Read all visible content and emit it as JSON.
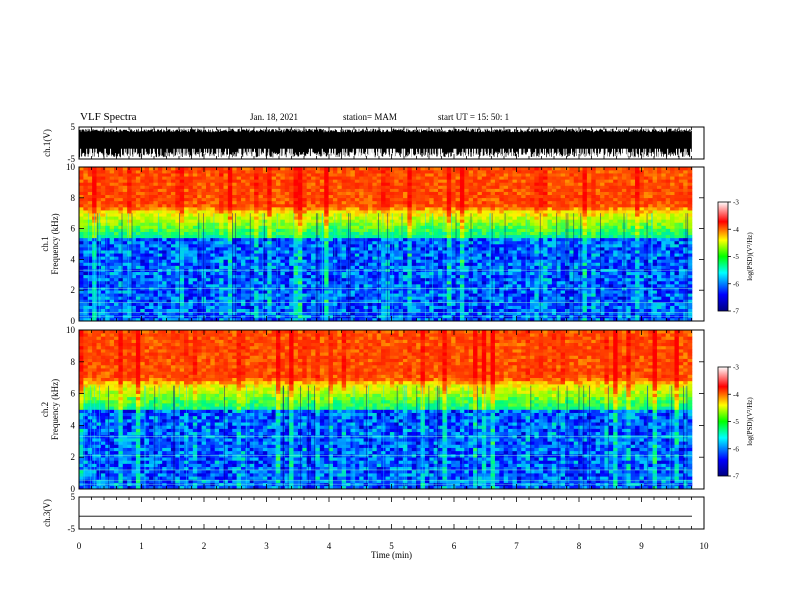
{
  "header": {
    "title": "VLF Spectra",
    "date": "Jan. 18, 2021",
    "station": "station= MAM",
    "start": "start UT = 15: 50: 1"
  },
  "chart_data": [
    {
      "type": "line",
      "panel": "ch1-waveform",
      "ylabel": "ch.1(V)",
      "ylim": [
        -5,
        5
      ],
      "yticks": [
        "5",
        "-5"
      ],
      "description_values": {
        "typical_amplitude_V": [
          -4.5,
          4.5
        ]
      }
    },
    {
      "type": "heatmap",
      "panel": "ch1-spectrogram",
      "ylabel_line1": "ch.1",
      "ylabel_line2": "Frequency (kHz)",
      "ylim": [
        0,
        10
      ],
      "yticks": [
        "0",
        "2",
        "4",
        "6",
        "8",
        "10"
      ],
      "colorbar": {
        "label": "log(PSD)(V²/Hz)",
        "range": [
          -7,
          -3
        ],
        "ticks": [
          "-3",
          "-4",
          "-5",
          "-6",
          "-7"
        ]
      },
      "bands_kHz": {
        "high_red": [
          7.5,
          10
        ],
        "transition_green": [
          5.5,
          7
        ],
        "low_blue": [
          0,
          5
        ]
      }
    },
    {
      "type": "heatmap",
      "panel": "ch2-spectrogram",
      "ylabel_line1": "ch.2",
      "ylabel_line2": "Frequency (kHz)",
      "ylim": [
        0,
        10
      ],
      "yticks": [
        "0",
        "2",
        "4",
        "6",
        "8",
        "10"
      ],
      "colorbar": {
        "label": "log(PSD)(V²/Hz)",
        "range": [
          -7,
          -3
        ],
        "ticks": [
          "-3",
          "-4",
          "-5",
          "-6",
          "-7"
        ]
      },
      "bands_kHz": {
        "high_red": [
          7,
          10
        ],
        "transition_green": [
          5,
          6.5
        ],
        "low_blue": [
          0,
          4.5
        ]
      }
    },
    {
      "type": "line",
      "panel": "ch3-waveform",
      "ylabel": "ch.3(V)",
      "ylim": [
        -5,
        5
      ],
      "yticks": [
        "5",
        "-5"
      ],
      "constant_value_V": -1
    }
  ],
  "xaxis": {
    "label": "Time (min)",
    "range": [
      0,
      10
    ],
    "ticks": [
      "0",
      "1",
      "2",
      "3",
      "4",
      "5",
      "6",
      "7",
      "8",
      "9",
      "10"
    ]
  }
}
